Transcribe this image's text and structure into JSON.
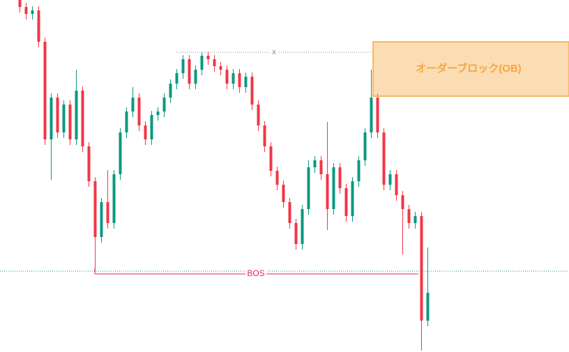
{
  "chart_data": {
    "type": "candlestick",
    "ylim": [
      0,
      101
    ],
    "up_color": "#089981",
    "down_color": "#f23645",
    "open": [
      101,
      99,
      97,
      98,
      89,
      61,
      73,
      63,
      71,
      61,
      75,
      59,
      49,
      33,
      43,
      37,
      51,
      63,
      69,
      73,
      65,
      61,
      68,
      69,
      73,
      77,
      80,
      84,
      77,
      81,
      85,
      84,
      82,
      81,
      77,
      80,
      76,
      79,
      71,
      65,
      59,
      52,
      48,
      43,
      37,
      31,
      41,
      53,
      55,
      51,
      41,
      53,
      47,
      39,
      49,
      55,
      63,
      73,
      63,
      48,
      51,
      45,
      41,
      37,
      39,
      9
    ],
    "high": [
      101,
      100.2,
      99.2,
      99.2,
      90.2,
      74.2,
      74.2,
      72.2,
      72.2,
      81,
      76.2,
      60.2,
      50.2,
      44.2,
      52.2,
      52.2,
      64.2,
      70.2,
      76,
      74.2,
      66.2,
      69.2,
      70.2,
      74.2,
      78.2,
      81.2,
      85.2,
      85.2,
      82.2,
      86,
      86.2,
      85.2,
      83.2,
      82.2,
      81.2,
      81.2,
      80.2,
      80.2,
      72.2,
      66.2,
      60.2,
      53.2,
      49.2,
      44.2,
      38.2,
      42.2,
      55,
      56.2,
      56.2,
      66,
      54.2,
      54.2,
      48.2,
      50.2,
      56.2,
      64.2,
      81,
      74.2,
      64.2,
      52.2,
      52.2,
      46.2,
      42.2,
      40.2,
      40.2,
      30
    ],
    "low": [
      97.4,
      95.4,
      95.4,
      87.4,
      59.4,
      49.4,
      61.4,
      61.4,
      59.4,
      59.4,
      57.4,
      47.4,
      23,
      31.4,
      35.4,
      35.4,
      49.4,
      61.4,
      67.4,
      63.4,
      59.4,
      59.4,
      66.4,
      67.4,
      71.4,
      75.4,
      78.4,
      75.4,
      75.4,
      79.4,
      82.4,
      80.4,
      79.4,
      75.4,
      75.4,
      74.4,
      74.4,
      69.4,
      63.4,
      57.4,
      50.4,
      46.4,
      41.4,
      35.4,
      29.4,
      29.4,
      39.4,
      51.4,
      49.4,
      35,
      39.4,
      45.4,
      37.4,
      37.4,
      47.4,
      53.4,
      61.4,
      61.4,
      46.4,
      46.4,
      43.4,
      28,
      35.4,
      35.4,
      0.4,
      7.4
    ],
    "close": [
      99,
      97,
      98,
      89,
      61,
      73,
      63,
      71,
      61,
      75,
      59,
      49,
      33,
      43,
      37,
      51,
      63,
      69,
      73,
      65,
      61,
      68,
      69,
      73,
      77,
      80,
      84,
      77,
      81,
      85,
      84,
      82,
      81,
      77,
      80,
      76,
      79,
      71,
      65,
      59,
      52,
      48,
      43,
      37,
      31,
      41,
      53,
      55,
      51,
      41,
      53,
      47,
      39,
      49,
      55,
      63,
      73,
      63,
      48,
      51,
      45,
      41,
      37,
      39,
      9,
      17
    ],
    "order_block": {
      "text": "オーダーブロック(OB)",
      "top": 89,
      "bottom": 73.4,
      "color": "#f5a742"
    },
    "swing_high": {
      "text": "x",
      "value": 86
    },
    "break_level": {
      "value": 23.2,
      "color": "#089981"
    },
    "bos": {
      "text": "BOS",
      "value": 22.4,
      "color": "#e91e63"
    }
  }
}
